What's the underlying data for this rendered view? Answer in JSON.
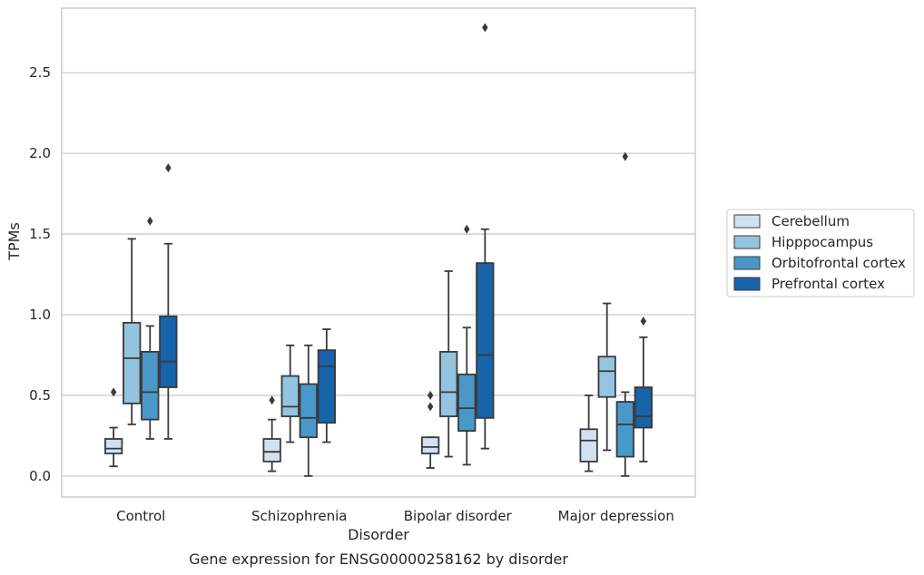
{
  "chart_data": {
    "type": "boxplot",
    "caption": "Gene expression for ENSG00000258162 by disorder",
    "xlabel": "Disorder",
    "ylabel": "TPMs",
    "ylim": [
      -0.13,
      2.9
    ],
    "yticks": [
      0.0,
      0.5,
      1.0,
      1.5,
      2.0,
      2.5
    ],
    "ytick_labels": [
      "0.0",
      "0.5",
      "1.0",
      "1.5",
      "2.0",
      "2.5"
    ],
    "categories": [
      "Control",
      "Schizophrenia",
      "Bipolar disorder",
      "Major depression"
    ],
    "grid": true,
    "legend_position": "right",
    "series": [
      {
        "name": "Cerebellum",
        "color": "#d0e1f2",
        "boxes": [
          {
            "whislo": 0.06,
            "q1": 0.14,
            "med": 0.17,
            "q3": 0.23,
            "whishi": 0.3,
            "fliers": [
              0.52
            ]
          },
          {
            "whislo": 0.03,
            "q1": 0.09,
            "med": 0.15,
            "q3": 0.23,
            "whishi": 0.35,
            "fliers": [
              0.47
            ]
          },
          {
            "whislo": 0.05,
            "q1": 0.14,
            "med": 0.18,
            "q3": 0.24,
            "whishi": 0.24,
            "fliers": [
              0.43,
              0.5
            ]
          },
          {
            "whislo": 0.03,
            "q1": 0.09,
            "med": 0.22,
            "q3": 0.29,
            "whishi": 0.5,
            "fliers": []
          }
        ]
      },
      {
        "name": "Hipppocampus",
        "color": "#94c4df",
        "boxes": [
          {
            "whislo": 0.32,
            "q1": 0.45,
            "med": 0.73,
            "q3": 0.95,
            "whishi": 1.47,
            "fliers": []
          },
          {
            "whislo": 0.21,
            "q1": 0.37,
            "med": 0.43,
            "q3": 0.62,
            "whishi": 0.81,
            "fliers": []
          },
          {
            "whislo": 0.12,
            "q1": 0.37,
            "med": 0.52,
            "q3": 0.77,
            "whishi": 1.27,
            "fliers": []
          },
          {
            "whislo": 0.16,
            "q1": 0.49,
            "med": 0.65,
            "q3": 0.74,
            "whishi": 1.07,
            "fliers": []
          }
        ]
      },
      {
        "name": "Orbitofrontal cortex",
        "color": "#4a98c9",
        "boxes": [
          {
            "whislo": 0.23,
            "q1": 0.35,
            "med": 0.52,
            "q3": 0.77,
            "whishi": 0.93,
            "fliers": [
              1.58
            ]
          },
          {
            "whislo": 0.0,
            "q1": 0.24,
            "med": 0.36,
            "q3": 0.57,
            "whishi": 0.81,
            "fliers": []
          },
          {
            "whislo": 0.07,
            "q1": 0.28,
            "med": 0.42,
            "q3": 0.63,
            "whishi": 0.92,
            "fliers": [
              1.53
            ]
          },
          {
            "whislo": 0.0,
            "q1": 0.12,
            "med": 0.32,
            "q3": 0.46,
            "whishi": 0.52,
            "fliers": [
              1.98
            ]
          }
        ]
      },
      {
        "name": "Prefrontal cortex",
        "color": "#1764ab",
        "boxes": [
          {
            "whislo": 0.23,
            "q1": 0.55,
            "med": 0.71,
            "q3": 0.99,
            "whishi": 1.44,
            "fliers": [
              1.91
            ]
          },
          {
            "whislo": 0.21,
            "q1": 0.33,
            "med": 0.68,
            "q3": 0.78,
            "whishi": 0.91,
            "fliers": []
          },
          {
            "whislo": 0.17,
            "q1": 0.36,
            "med": 0.75,
            "q3": 1.32,
            "whishi": 1.53,
            "fliers": [
              2.78
            ]
          },
          {
            "whislo": 0.09,
            "q1": 0.3,
            "med": 0.37,
            "q3": 0.55,
            "whishi": 0.86,
            "fliers": [
              0.96
            ]
          }
        ]
      }
    ]
  }
}
